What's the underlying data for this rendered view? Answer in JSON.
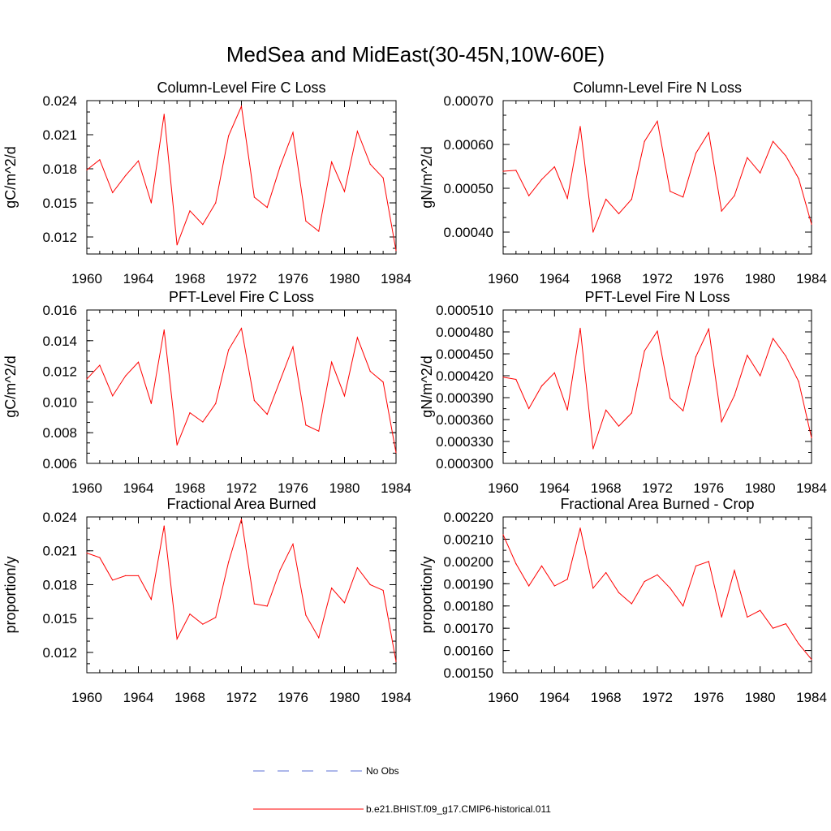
{
  "title": "MedSea and MidEast(30-45N,10W-60E)",
  "legend": {
    "entries": [
      {
        "label": "No Obs",
        "color": "#5b6fd6",
        "style": "dashed"
      },
      {
        "label": "b.e21.BHIST.f09_g17.CMIP6-historical.011",
        "color": "#ff0000",
        "style": "solid"
      }
    ]
  },
  "chart_data": [
    {
      "type": "line",
      "title": "Column-Level Fire C Loss",
      "ylabel": "gC/m^2/d",
      "xlim": [
        1960,
        1984
      ],
      "ylim": [
        0.0105,
        0.024
      ],
      "xticks": [
        "1960",
        "1964",
        "1968",
        "1972",
        "1976",
        "1980",
        "1984"
      ],
      "yticks": [
        "0.012",
        "0.015",
        "0.018",
        "0.021",
        "0.024"
      ],
      "x": [
        1960,
        1961,
        1962,
        1963,
        1964,
        1965,
        1966,
        1967,
        1968,
        1969,
        1970,
        1971,
        1972,
        1973,
        1974,
        1975,
        1976,
        1977,
        1978,
        1979,
        1980,
        1981,
        1982,
        1983,
        1984
      ],
      "series": [
        {
          "color": "#ff0000",
          "values": [
            0.0179,
            0.0188,
            0.0159,
            0.0174,
            0.0187,
            0.015,
            0.0228,
            0.0113,
            0.0143,
            0.0131,
            0.015,
            0.0209,
            0.0235,
            0.0155,
            0.0146,
            0.0182,
            0.0212,
            0.0134,
            0.0125,
            0.0186,
            0.016,
            0.0213,
            0.0184,
            0.0172,
            0.0108
          ]
        }
      ]
    },
    {
      "type": "line",
      "title": "Column-Level Fire N Loss",
      "ylabel": "gN/m^2/d",
      "xlim": [
        1960,
        1984
      ],
      "ylim": [
        0.00035,
        0.0007
      ],
      "xticks": [
        "1960",
        "1964",
        "1968",
        "1972",
        "1976",
        "1980",
        "1984"
      ],
      "yticks": [
        "0.00040",
        "0.00050",
        "0.00060",
        "0.00070"
      ],
      "x": [
        1960,
        1961,
        1962,
        1963,
        1964,
        1965,
        1966,
        1967,
        1968,
        1969,
        1970,
        1971,
        1972,
        1973,
        1974,
        1975,
        1976,
        1977,
        1978,
        1979,
        1980,
        1981,
        1982,
        1983,
        1984
      ],
      "series": [
        {
          "color": "#ff0000",
          "values": [
            0.000539,
            0.000541,
            0.000483,
            0.00052,
            0.000549,
            0.000477,
            0.000641,
            0.0004,
            0.000475,
            0.000442,
            0.000475,
            0.000607,
            0.000653,
            0.000493,
            0.00048,
            0.00058,
            0.000627,
            0.000448,
            0.000483,
            0.00057,
            0.000535,
            0.000607,
            0.000574,
            0.000522,
            0.000418
          ]
        }
      ]
    },
    {
      "type": "line",
      "title": "PFT-Level Fire C Loss",
      "ylabel": "gC/m^2/d",
      "xlim": [
        1960,
        1984
      ],
      "ylim": [
        0.006,
        0.016
      ],
      "xticks": [
        "1960",
        "1964",
        "1968",
        "1972",
        "1976",
        "1980",
        "1984"
      ],
      "yticks": [
        "0.006",
        "0.008",
        "0.010",
        "0.012",
        "0.014",
        "0.016"
      ],
      "x": [
        1960,
        1961,
        1962,
        1963,
        1964,
        1965,
        1966,
        1967,
        1968,
        1969,
        1970,
        1971,
        1972,
        1973,
        1974,
        1975,
        1976,
        1977,
        1978,
        1979,
        1980,
        1981,
        1982,
        1983,
        1984
      ],
      "series": [
        {
          "color": "#ff0000",
          "values": [
            0.0115,
            0.0124,
            0.0104,
            0.0117,
            0.0126,
            0.0099,
            0.0147,
            0.0072,
            0.0093,
            0.0087,
            0.0099,
            0.0134,
            0.0148,
            0.0101,
            0.0092,
            0.0114,
            0.0136,
            0.0085,
            0.0081,
            0.0126,
            0.0104,
            0.0142,
            0.012,
            0.0113,
            0.0067
          ]
        }
      ]
    },
    {
      "type": "line",
      "title": "PFT-Level Fire N Loss",
      "ylabel": "gN/m^2/d",
      "xlim": [
        1960,
        1984
      ],
      "ylim": [
        0.0003,
        0.00051
      ],
      "xticks": [
        "1960",
        "1964",
        "1968",
        "1972",
        "1976",
        "1980",
        "1984"
      ],
      "yticks": [
        "0.000300",
        "0.000330",
        "0.000360",
        "0.000390",
        "0.000420",
        "0.000450",
        "0.000480",
        "0.000510"
      ],
      "x": [
        1960,
        1961,
        1962,
        1963,
        1964,
        1965,
        1966,
        1967,
        1968,
        1969,
        1970,
        1971,
        1972,
        1973,
        1974,
        1975,
        1976,
        1977,
        1978,
        1979,
        1980,
        1981,
        1982,
        1983,
        1984
      ],
      "series": [
        {
          "color": "#ff0000",
          "values": [
            0.000418,
            0.000415,
            0.000375,
            0.000406,
            0.000424,
            0.000373,
            0.000485,
            0.00032,
            0.000373,
            0.000351,
            0.000369,
            0.000454,
            0.000481,
            0.000389,
            0.000372,
            0.000446,
            0.000484,
            0.000357,
            0.000393,
            0.000448,
            0.00042,
            0.000471,
            0.000447,
            0.000412,
            0.000335
          ]
        }
      ]
    },
    {
      "type": "line",
      "title": "Fractional Area Burned",
      "ylabel": "proportion/y",
      "xlim": [
        1960,
        1984
      ],
      "ylim": [
        0.0102,
        0.024
      ],
      "xticks": [
        "1960",
        "1964",
        "1968",
        "1972",
        "1976",
        "1980",
        "1984"
      ],
      "yticks": [
        "0.012",
        "0.015",
        "0.018",
        "0.021",
        "0.024"
      ],
      "x": [
        1960,
        1961,
        1962,
        1963,
        1964,
        1965,
        1966,
        1967,
        1968,
        1969,
        1970,
        1971,
        1972,
        1973,
        1974,
        1975,
        1976,
        1977,
        1978,
        1979,
        1980,
        1981,
        1982,
        1983,
        1984
      ],
      "series": [
        {
          "color": "#ff0000",
          "values": [
            0.0208,
            0.0204,
            0.0184,
            0.0188,
            0.0188,
            0.0167,
            0.0232,
            0.0132,
            0.0154,
            0.0145,
            0.0151,
            0.02,
            0.0238,
            0.0163,
            0.0161,
            0.0193,
            0.0216,
            0.0153,
            0.0133,
            0.0177,
            0.0164,
            0.0195,
            0.018,
            0.0175,
            0.0112
          ]
        }
      ]
    },
    {
      "type": "line",
      "title": "Fractional Area Burned - Crop",
      "ylabel": "proportion/y",
      "xlim": [
        1960,
        1984
      ],
      "ylim": [
        0.0015,
        0.0022
      ],
      "xticks": [
        "1960",
        "1964",
        "1968",
        "1972",
        "1976",
        "1980",
        "1984"
      ],
      "yticks": [
        "0.00150",
        "0.00160",
        "0.00170",
        "0.00180",
        "0.00190",
        "0.00200",
        "0.00210",
        "0.00220"
      ],
      "x": [
        1960,
        1961,
        1962,
        1963,
        1964,
        1965,
        1966,
        1967,
        1968,
        1969,
        1970,
        1971,
        1972,
        1973,
        1974,
        1975,
        1976,
        1977,
        1978,
        1979,
        1980,
        1981,
        1982,
        1983,
        1984
      ],
      "series": [
        {
          "color": "#ff0000",
          "values": [
            0.00212,
            0.00199,
            0.00189,
            0.00198,
            0.00189,
            0.00192,
            0.00215,
            0.00188,
            0.00195,
            0.00186,
            0.00181,
            0.00191,
            0.00194,
            0.00188,
            0.0018,
            0.00198,
            0.002,
            0.00175,
            0.00196,
            0.00175,
            0.00178,
            0.0017,
            0.00172,
            0.00163,
            0.00156
          ]
        }
      ]
    }
  ]
}
